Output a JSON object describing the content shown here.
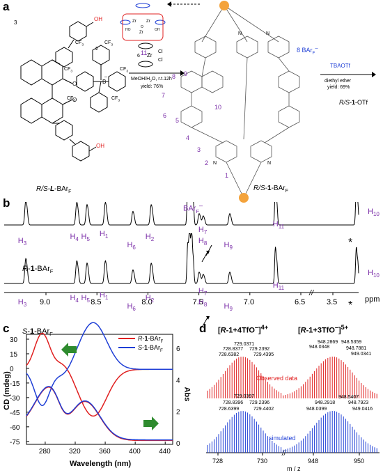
{
  "panels": {
    "a": "a",
    "b": "b",
    "c": "c",
    "d": "d"
  },
  "scheme": {
    "ligand_label_prefix": "R/S-",
    "ligand_label_main": "L",
    "ligand_label_suffix": "-BAr",
    "ligand_label_sub": "F",
    "cooh": "OH",
    "borate_charge": "–",
    "cf3": "CF",
    "num_3": "3",
    "num_2": "2",
    "num_6": "6",
    "reagent_zr": "Zr",
    "reagent_cl": "Cl",
    "conditions_1": "MeOH/H",
    "conditions_2": "O, r.t.12h",
    "yield_1": "yield: 76%",
    "cluster_label": "11",
    "cage_label_prefix": "R/S-",
    "cage_label_main": "1",
    "cage_label_suffix": "-BAr",
    "cage_label_sub": "F",
    "counterion": "8 BAr",
    "counterion_sub": "F",
    "counterion_sup": "–",
    "tbaotf": "TBAOTf",
    "ether": "diethyl ether",
    "yield_2": "yield: 69%",
    "product_prefix": "R/S-",
    "product_main": "1",
    "product_suffix": "-OTf",
    "cage_nums": [
      "1",
      "2",
      "3",
      "4",
      "5",
      "6",
      "7",
      "8",
      "9",
      "10"
    ]
  },
  "nmr": {
    "ppm_label": "ppm",
    "ticks": [
      "9.0",
      "8.5",
      "8.0",
      "7.5",
      "7.0",
      "6.5",
      "3.5"
    ],
    "top_label": "R-1-BAr",
    "bottom_label": "S-1-BAr",
    "label_sub": "F",
    "bar_label": "BAr",
    "bar_sub": "F",
    "bar_sup": "–",
    "star": "*",
    "peaks_top": [
      "H3",
      "H4",
      "H5",
      "H1",
      "H6",
      "H2",
      "H7",
      "H8",
      "H9",
      "H11",
      "H10"
    ],
    "peaks_bottom": [
      "H3",
      "H4",
      "H5",
      "H1",
      "H6",
      "H2",
      "H7",
      "H8",
      "H9",
      "H11",
      "H10"
    ]
  },
  "cd": {
    "xlabel": "Wavelength (nm)",
    "ylabel": "CD (mdeg)",
    "y2label": "Abs",
    "xticks": [
      "280",
      "320",
      "360",
      "400",
      "440"
    ],
    "yticks": [
      "30",
      "15",
      "0",
      "-15",
      "-30",
      "-45",
      "-60",
      "-75"
    ],
    "y2ticks": [
      "6",
      "4",
      "2",
      "0"
    ],
    "legend_r": "R-1-BAr",
    "legend_s": "S-1-BAr",
    "legend_sub": "F",
    "color_r": "#e02020",
    "color_s": "#1f3fd6"
  },
  "ms": {
    "label_left": "[R-1+4TfO",
    "label_left_sup": "–",
    "label_left_charge": "]4+",
    "label_right": "[R-1+3TfO",
    "label_right_sup": "–",
    "label_right_charge": "]5+",
    "observed": "Observed data",
    "simulated": "simulated",
    "xlabel": "m / z",
    "xticks": [
      "728",
      "730",
      "948",
      "950"
    ],
    "obs_left": [
      "729.0371",
      "728.8377",
      "729.2392",
      "728.6382",
      "729.4395"
    ],
    "obs_right": [
      "948.2869",
      "948.5359",
      "948.0348",
      "948.7881",
      "949.0341"
    ],
    "sim_left": [
      "729.0397",
      "728.8396",
      "729.2396",
      "728.6399",
      "729.4402"
    ],
    "sim_right": [
      "948.5407",
      "948.2918",
      "948.7923",
      "948.0399",
      "949.0416"
    ]
  }
}
